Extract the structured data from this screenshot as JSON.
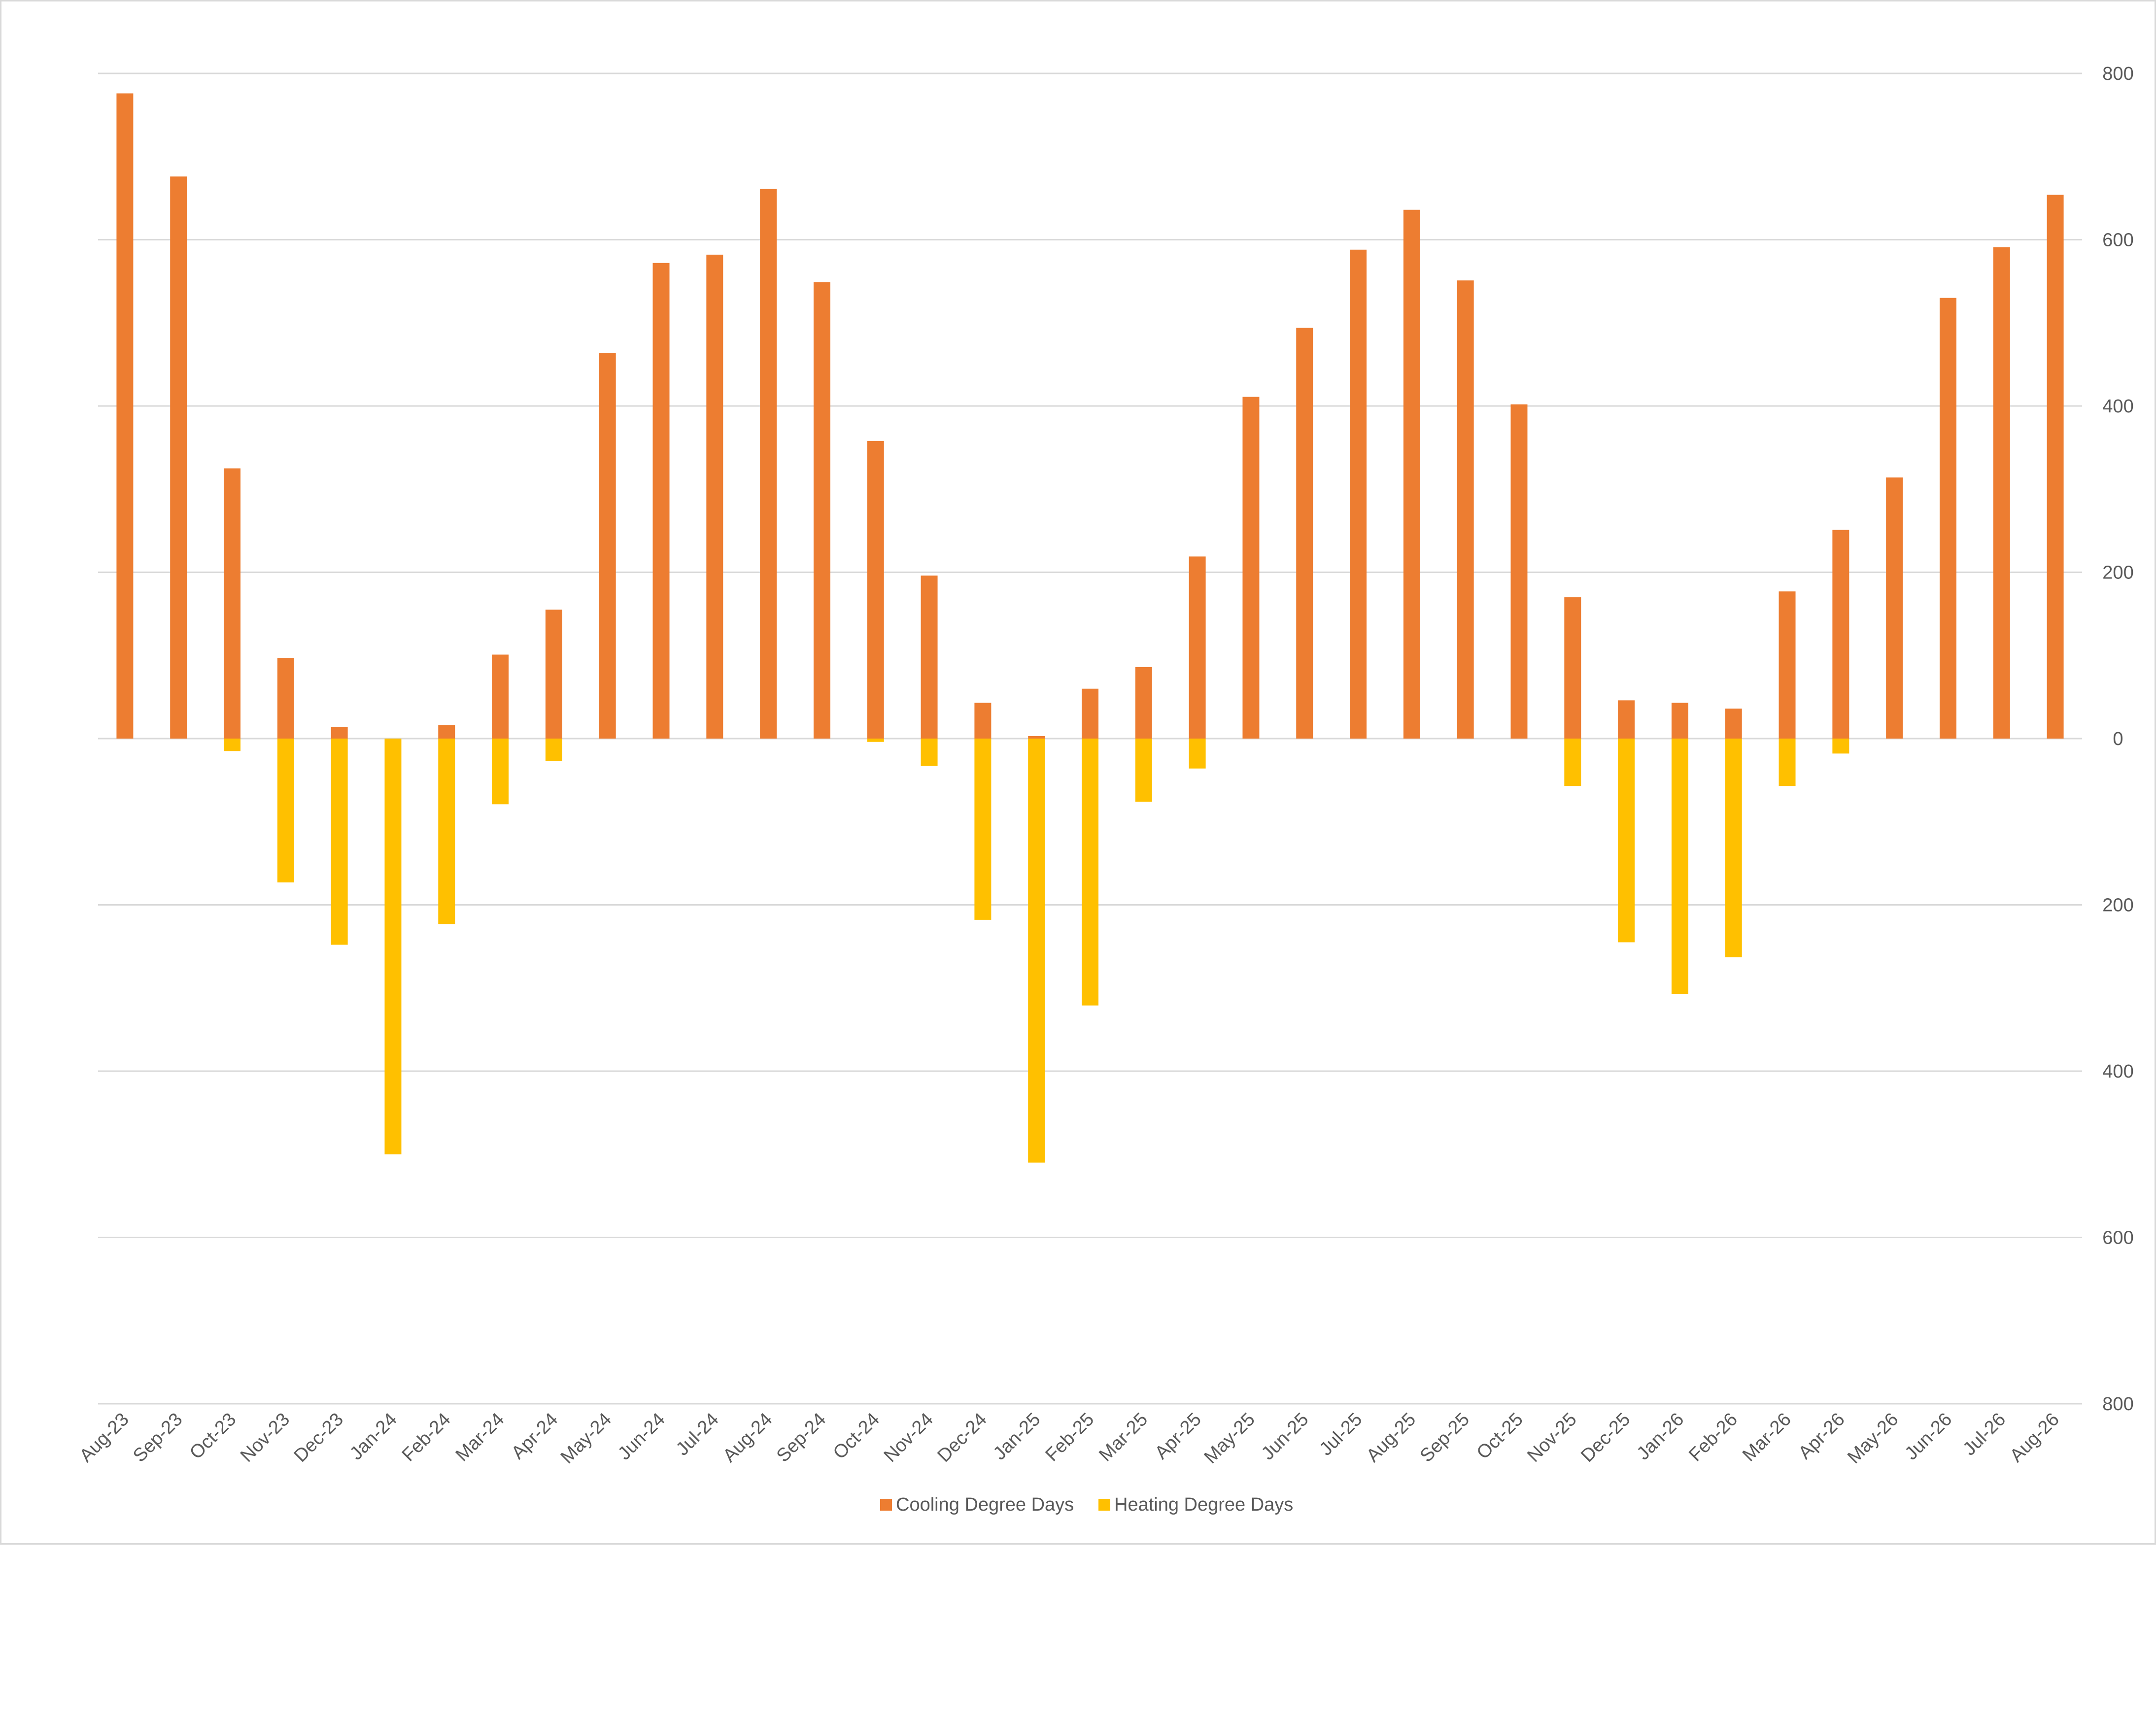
{
  "chart_data": {
    "type": "bar",
    "title": "",
    "xlabel": "",
    "ylabel": "",
    "ylim": [
      -800,
      800
    ],
    "y_ticks": [
      800,
      600,
      400,
      200,
      0,
      -200,
      -400,
      -600,
      -800
    ],
    "y_tick_labels": [
      "800",
      "600",
      "400",
      "200",
      "0",
      "200",
      "400",
      "600",
      "800"
    ],
    "y_axis_side": "right",
    "grid": true,
    "legend_position": "bottom",
    "categories": [
      "Aug-23",
      "Sep-23",
      "Oct-23",
      "Nov-23",
      "Dec-23",
      "Jan-24",
      "Feb-24",
      "Mar-24",
      "Apr-24",
      "May-24",
      "Jun-24",
      "Jul-24",
      "Aug-24",
      "Sep-24",
      "Oct-24",
      "Nov-24",
      "Dec-24",
      "Jan-25",
      "Feb-25",
      "Mar-25",
      "Apr-25",
      "May-25",
      "Jun-25",
      "Jul-25",
      "Aug-25",
      "Sep-25",
      "Oct-25",
      "Nov-25",
      "Dec-25",
      "Jan-26",
      "Feb-26",
      "Mar-26",
      "Apr-26",
      "May-26",
      "Jun-26",
      "Jul-26",
      "Aug-26"
    ],
    "series": [
      {
        "name": "Cooling Degree Days",
        "color": "#ED7D31",
        "values": [
          776,
          676,
          325,
          97,
          14,
          0,
          16,
          101,
          155,
          464,
          572,
          582,
          661,
          549,
          358,
          196,
          43,
          3,
          60,
          86,
          219,
          411,
          494,
          588,
          636,
          551,
          402,
          170,
          46,
          43,
          36,
          177,
          251,
          314,
          530,
          591,
          654
        ]
      },
      {
        "name": "Heating Degree Days",
        "color": "#FFC000",
        "values": [
          0,
          0,
          -15,
          -173,
          -248,
          -500,
          -223,
          -79,
          -27,
          0,
          0,
          0,
          0,
          0,
          -4,
          -33,
          -218,
          -510,
          -321,
          -76,
          -36,
          0,
          0,
          0,
          0,
          0,
          0,
          -57,
          -245,
          -307,
          -263,
          -57,
          -18,
          0,
          0,
          0,
          0
        ]
      }
    ]
  }
}
